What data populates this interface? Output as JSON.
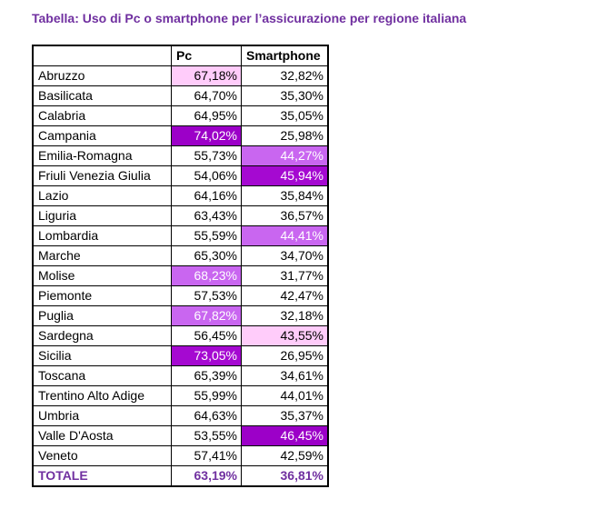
{
  "title": "Tabella: Uso di Pc o smartphone per l’assicurazione per regione italiana",
  "colors": {
    "title_text": "#7030A0",
    "total_row_text": "#7030A0",
    "table_border": "#000000",
    "body_text": "#000000",
    "highlights": {
      "light": {
        "bg": "#FFCCFA",
        "fg": "#000000"
      },
      "medium": {
        "bg": "#C966F0",
        "fg": "#FFFFFF"
      },
      "dark": {
        "bg": "#A509D1",
        "fg": "#FFFFFF"
      },
      "darkest": {
        "bg": "#9C00C8",
        "fg": "#FFFFFF"
      }
    }
  },
  "table": {
    "headers": [
      "",
      "Pc",
      "Smartphone"
    ],
    "rows": [
      {
        "region": "Abruzzo",
        "pc": "67,18%",
        "smartphone": "32,82%",
        "pc_hl": "light",
        "sp_hl": "none",
        "is_total": false
      },
      {
        "region": "Basilicata",
        "pc": "64,70%",
        "smartphone": "35,30%",
        "pc_hl": "none",
        "sp_hl": "none",
        "is_total": false
      },
      {
        "region": "Calabria",
        "pc": "64,95%",
        "smartphone": "35,05%",
        "pc_hl": "none",
        "sp_hl": "none",
        "is_total": false
      },
      {
        "region": "Campania",
        "pc": "74,02%",
        "smartphone": "25,98%",
        "pc_hl": "darkest",
        "sp_hl": "none",
        "is_total": false
      },
      {
        "region": "Emilia-Romagna",
        "pc": "55,73%",
        "smartphone": "44,27%",
        "pc_hl": "none",
        "sp_hl": "medium",
        "is_total": false
      },
      {
        "region": "Friuli Venezia Giulia",
        "pc": "54,06%",
        "smartphone": "45,94%",
        "pc_hl": "none",
        "sp_hl": "dark",
        "is_total": false
      },
      {
        "region": "Lazio",
        "pc": "64,16%",
        "smartphone": "35,84%",
        "pc_hl": "none",
        "sp_hl": "none",
        "is_total": false
      },
      {
        "region": "Liguria",
        "pc": "63,43%",
        "smartphone": "36,57%",
        "pc_hl": "none",
        "sp_hl": "none",
        "is_total": false
      },
      {
        "region": "Lombardia",
        "pc": "55,59%",
        "smartphone": "44,41%",
        "pc_hl": "none",
        "sp_hl": "medium",
        "is_total": false
      },
      {
        "region": "Marche",
        "pc": "65,30%",
        "smartphone": "34,70%",
        "pc_hl": "none",
        "sp_hl": "none",
        "is_total": false
      },
      {
        "region": "Molise",
        "pc": "68,23%",
        "smartphone": "31,77%",
        "pc_hl": "medium",
        "sp_hl": "none",
        "is_total": false
      },
      {
        "region": "Piemonte",
        "pc": "57,53%",
        "smartphone": "42,47%",
        "pc_hl": "none",
        "sp_hl": "none",
        "is_total": false
      },
      {
        "region": "Puglia",
        "pc": "67,82%",
        "smartphone": "32,18%",
        "pc_hl": "medium",
        "sp_hl": "none",
        "is_total": false
      },
      {
        "region": "Sardegna",
        "pc": "56,45%",
        "smartphone": "43,55%",
        "pc_hl": "none",
        "sp_hl": "light",
        "is_total": false
      },
      {
        "region": "Sicilia",
        "pc": "73,05%",
        "smartphone": "26,95%",
        "pc_hl": "dark",
        "sp_hl": "none",
        "is_total": false
      },
      {
        "region": "Toscana",
        "pc": "65,39%",
        "smartphone": "34,61%",
        "pc_hl": "none",
        "sp_hl": "none",
        "is_total": false
      },
      {
        "region": "Trentino Alto Adige",
        "pc": "55,99%",
        "smartphone": "44,01%",
        "pc_hl": "none",
        "sp_hl": "none",
        "is_total": false
      },
      {
        "region": "Umbria",
        "pc": "64,63%",
        "smartphone": "35,37%",
        "pc_hl": "none",
        "sp_hl": "none",
        "is_total": false
      },
      {
        "region": "Valle D'Aosta",
        "pc": "53,55%",
        "smartphone": "46,45%",
        "pc_hl": "none",
        "sp_hl": "darkest",
        "is_total": false
      },
      {
        "region": "Veneto",
        "pc": "57,41%",
        "smartphone": "42,59%",
        "pc_hl": "none",
        "sp_hl": "none",
        "is_total": false
      },
      {
        "region": "TOTALE",
        "pc": "63,19%",
        "smartphone": "36,81%",
        "pc_hl": "none",
        "sp_hl": "none",
        "is_total": true
      }
    ]
  }
}
